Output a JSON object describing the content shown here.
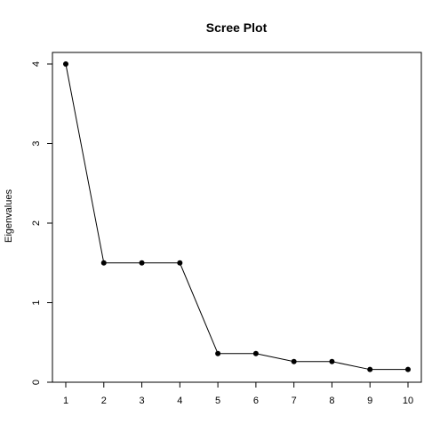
{
  "chart_data": {
    "type": "line",
    "title": "Scree Plot",
    "xlabel": "",
    "ylabel": "Eigenvalues",
    "x": [
      1,
      2,
      3,
      4,
      5,
      6,
      7,
      8,
      9,
      10
    ],
    "series": [
      {
        "values": [
          4.0,
          1.5,
          1.5,
          1.5,
          0.36,
          0.36,
          0.26,
          0.26,
          0.16,
          0.16
        ]
      }
    ],
    "xlim": [
      1,
      10
    ],
    "ylim": [
      0,
      4
    ],
    "xticks": [
      "1",
      "2",
      "3",
      "4",
      "5",
      "6",
      "7",
      "8",
      "9",
      "10"
    ],
    "yticks": [
      "0",
      "1",
      "2",
      "3",
      "4"
    ],
    "grid": false,
    "legend": "none",
    "colors": {
      "line": "#000000",
      "points": "#000000",
      "axes": "#000000"
    },
    "markers": "filled-circle"
  }
}
